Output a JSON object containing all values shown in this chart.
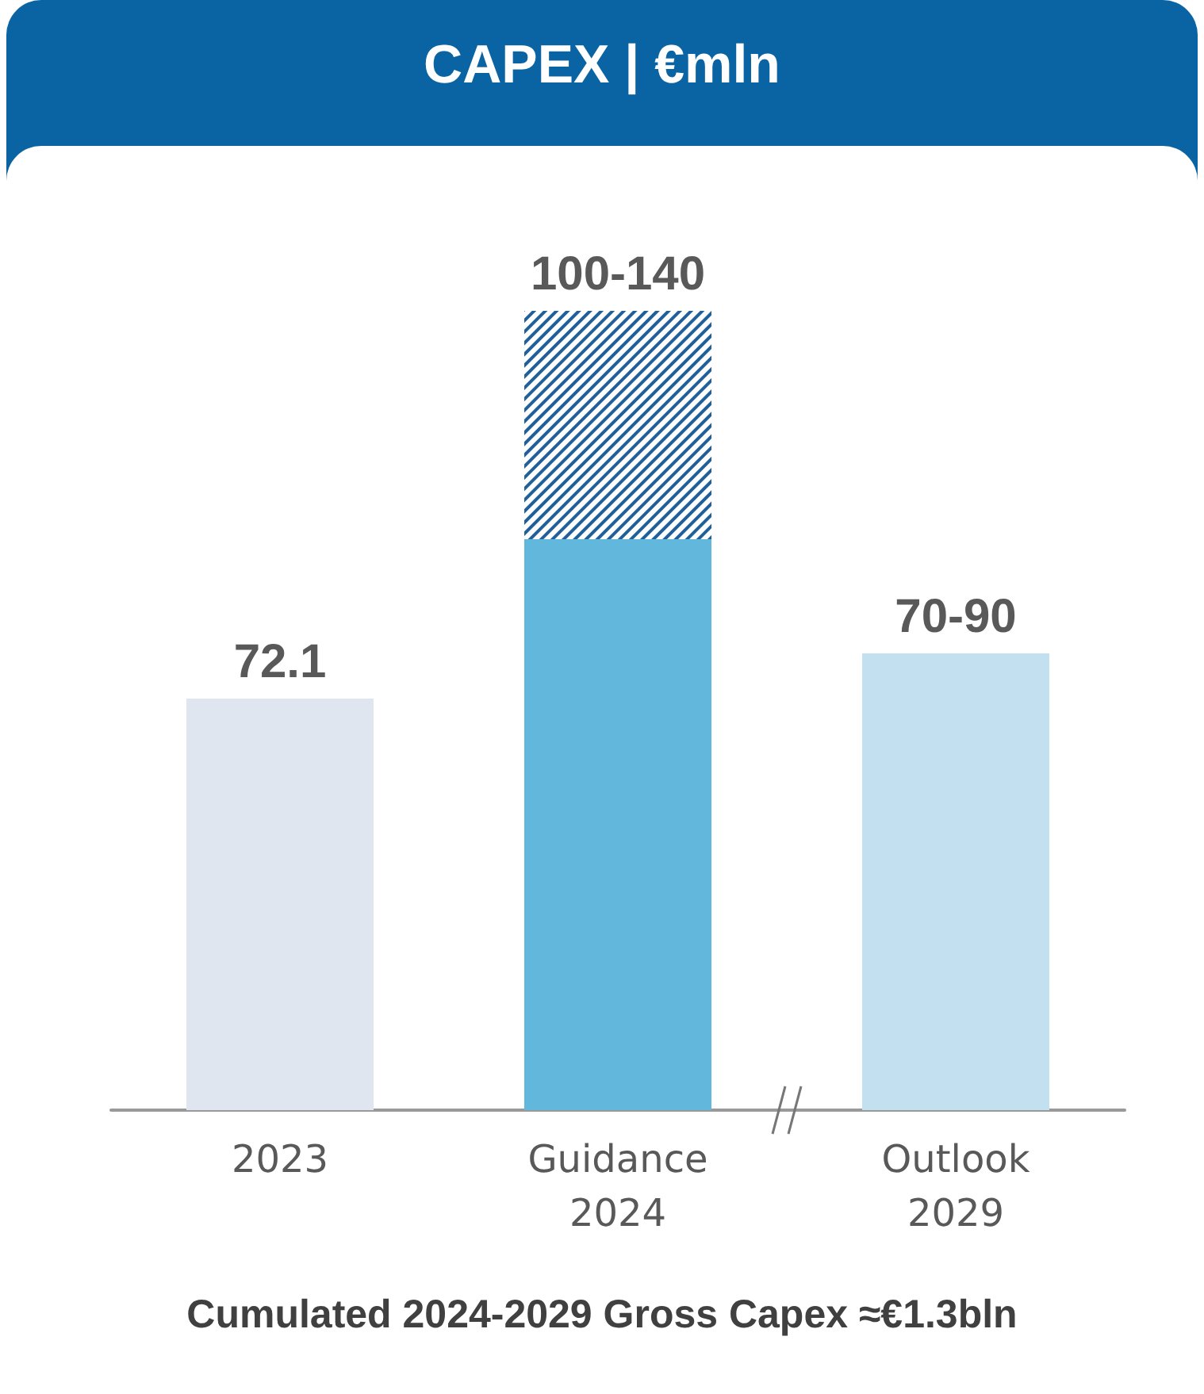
{
  "chart_data": {
    "type": "bar",
    "title": "CAPEX | €mln",
    "categories": [
      "2023",
      "Guidance\n2024",
      "Outlook\n2029"
    ],
    "stacked": true,
    "series": [
      {
        "colors": [
          "#dfe6f0",
          "#62b8dc",
          "#c3e0f0"
        ],
        "values": [
          72.1,
          100,
          80
        ],
        "value_labels": [
          "72.1",
          null,
          "70-90"
        ]
      },
      {
        "color": "#1f5f9a",
        "values": [
          null,
          40,
          null
        ],
        "value_labels": [
          null,
          "100-140",
          null
        ]
      }
    ],
    "annotations": [
      "Cumulated 2024-2029 Gross Capex ≈€1.3bln"
    ]
  }
}
